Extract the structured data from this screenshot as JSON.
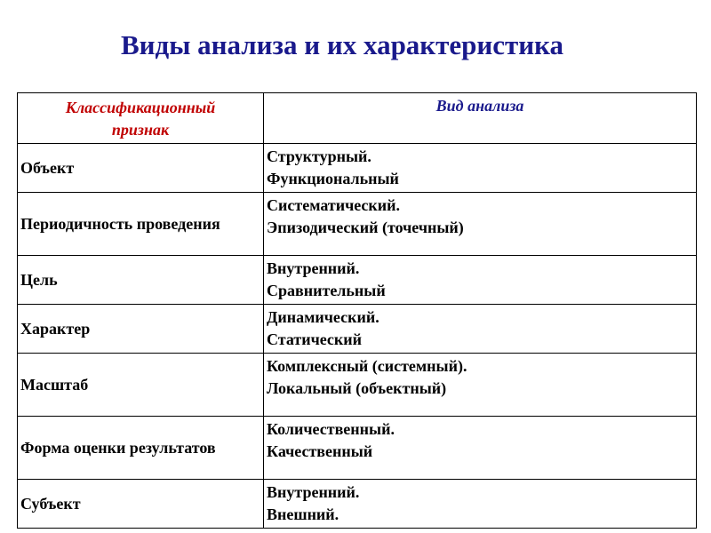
{
  "header": {
    "title": "Виды анализа и их характеристика"
  },
  "table": {
    "headers": [
      "Классификационный признак",
      "Вид анализа"
    ],
    "rows": [
      [
        "Объект",
        [
          "Структурный.",
          "Функциональный"
        ]
      ],
      [
        "Периодичность проведения",
        [
          "Систематический.",
          "Эпизодический (точечный)"
        ]
      ],
      [
        "Цель",
        [
          "Внутренний.",
          "Сравнительный"
        ]
      ],
      [
        "Характер",
        [
          "Динамический.",
          "Статический"
        ]
      ],
      [
        "Масштаб",
        [
          "Комплексный (системный).",
          "Локальный (объектный)"
        ]
      ],
      [
        "Форма оценки результатов",
        [
          "Количественный.",
          "Качественный"
        ]
      ],
      [
        "Субъект",
        [
          "Внутренний.",
          "Внешний."
        ]
      ]
    ]
  }
}
